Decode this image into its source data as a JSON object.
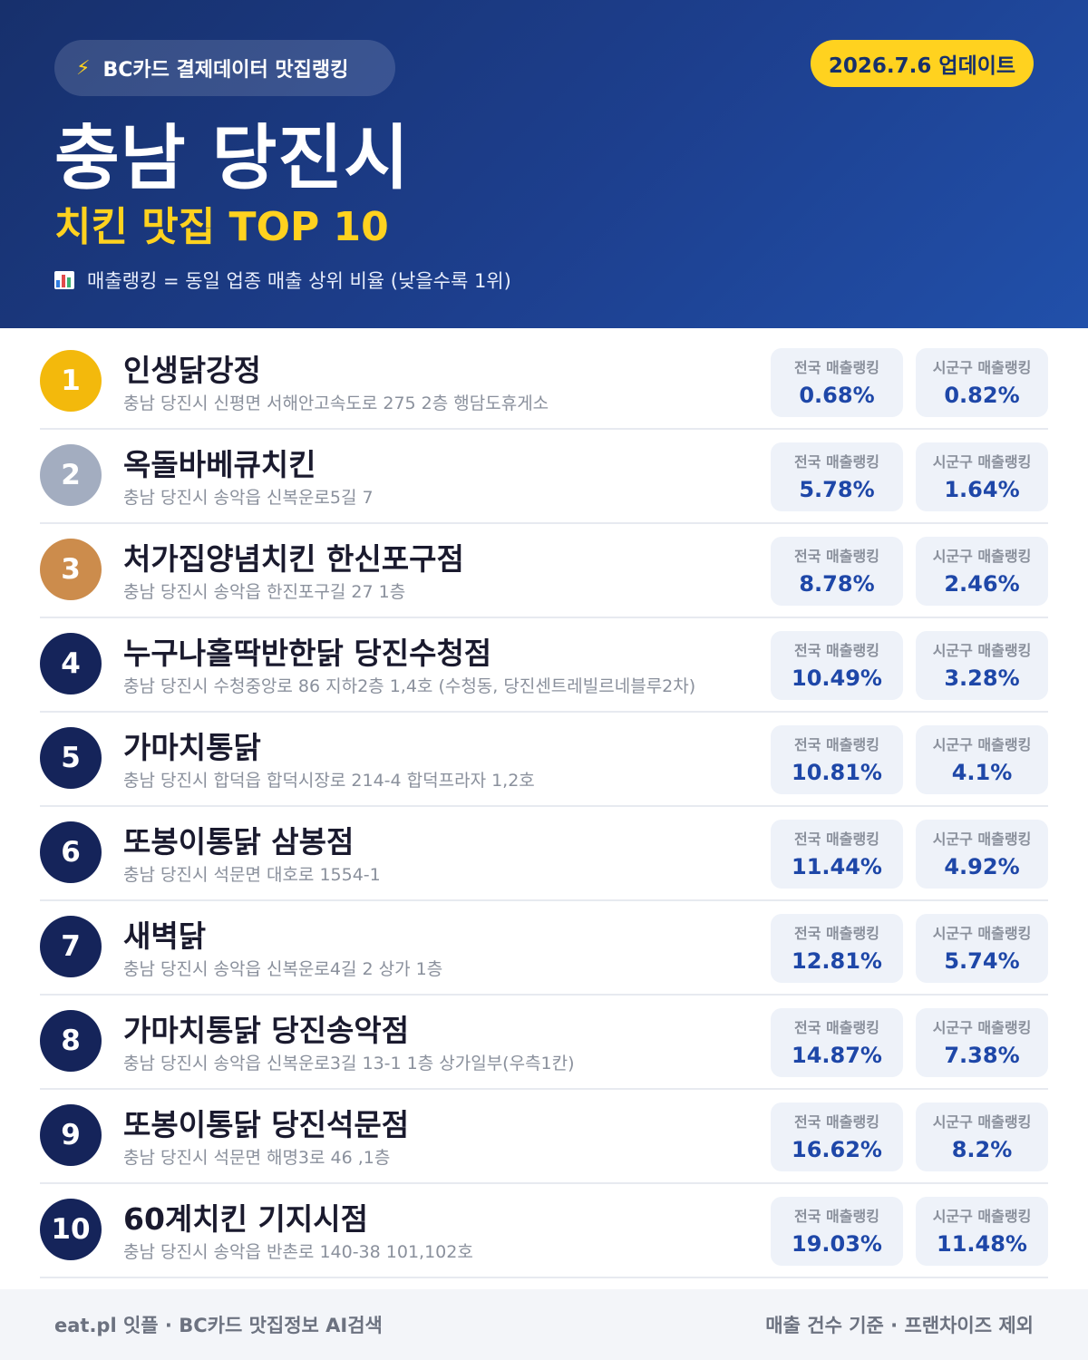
{
  "header": {
    "pill_icon": "lightning-icon",
    "pill_label": "BC카드 결제데이터 맛집랭킹",
    "update_label": "2026.7.6 업데이트",
    "title": "충남 당진시",
    "subtitle": "치킨 맛집 TOP 10",
    "note_icon": "bar-chart-icon",
    "note": "매출랭킹 = 동일 업종 매출 상위 비율 (낮을수록 1위)"
  },
  "stat_labels": {
    "national": "전국 매출랭킹",
    "local": "시군구 매출랭킹"
  },
  "colors": {
    "gold": "#f3b90c",
    "silver": "#a3adc0",
    "bronze": "#cc8c4c",
    "navy": "#15245a",
    "accent": "#ffd21f"
  },
  "ranking": [
    {
      "rank": "1",
      "name": "인생닭강정",
      "address": "충남 당진시 신평면 서해안고속도로 275 2층 행담도휴게소",
      "national": "0.68%",
      "local": "0.82%"
    },
    {
      "rank": "2",
      "name": "옥돌바베큐치킨",
      "address": "충남 당진시 송악읍 신복운로5길 7",
      "national": "5.78%",
      "local": "1.64%"
    },
    {
      "rank": "3",
      "name": "처가집양념치킨 한신포구점",
      "address": "충남 당진시 송악읍 한진포구길 27 1층",
      "national": "8.78%",
      "local": "2.46%"
    },
    {
      "rank": "4",
      "name": "누구나홀딱반한닭 당진수청점",
      "address": "충남 당진시 수청중앙로 86 지하2층 1,4호 (수청동, 당진센트레빌르네블루2차)",
      "national": "10.49%",
      "local": "3.28%"
    },
    {
      "rank": "5",
      "name": "가마치통닭",
      "address": "충남 당진시 합덕읍 합덕시장로 214-4 합덕프라자 1,2호",
      "national": "10.81%",
      "local": "4.1%"
    },
    {
      "rank": "6",
      "name": "또봉이통닭 삼봉점",
      "address": "충남 당진시 석문면 대호로 1554-1",
      "national": "11.44%",
      "local": "4.92%"
    },
    {
      "rank": "7",
      "name": "새벽닭",
      "address": "충남 당진시 송악읍 신복운로4길 2 상가 1층",
      "national": "12.81%",
      "local": "5.74%"
    },
    {
      "rank": "8",
      "name": "가마치통닭 당진송악점",
      "address": "충남 당진시 송악읍 신복운로3길 13-1 1층 상가일부(우측1칸)",
      "national": "14.87%",
      "local": "7.38%"
    },
    {
      "rank": "9",
      "name": "또봉이통닭 당진석문점",
      "address": "충남 당진시 석문면 해명3로 46 ,1층",
      "national": "16.62%",
      "local": "8.2%"
    },
    {
      "rank": "10",
      "name": "60계치킨 기지시점",
      "address": "충남 당진시 송악읍 반촌로 140-38 101,102호",
      "national": "19.03%",
      "local": "11.48%"
    }
  ],
  "footer": {
    "left": "eat.pl 잇플 · BC카드 맛집정보 AI검색",
    "right": "매출 건수 기준 · 프랜차이즈 제외"
  }
}
